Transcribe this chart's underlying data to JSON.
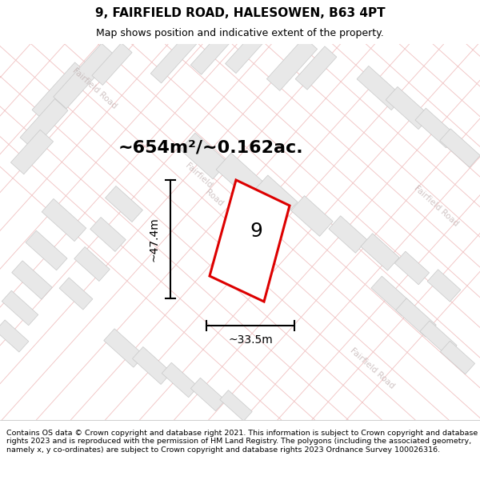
{
  "title": "9, FAIRFIELD ROAD, HALESOWEN, B63 4PT",
  "subtitle": "Map shows position and indicative extent of the property.",
  "footer": "Contains OS data © Crown copyright and database right 2021. This information is subject to Crown copyright and database rights 2023 and is reproduced with the permission of HM Land Registry. The polygons (including the associated geometry, namely x, y co-ordinates) are subject to Crown copyright and database rights 2023 Ordnance Survey 100026316.",
  "area_label": "~654m²/~0.162ac.",
  "width_label": "~33.5m",
  "height_label": "~47.4m",
  "property_number": "9",
  "map_bg": "#ffffff",
  "plot_outline_color": "#dd0000",
  "building_color": "#e8e8e8",
  "building_outline": "#c8c8c8",
  "road_line_color": "#f0c0c0",
  "road_label_color": "#c0b0b0",
  "title_fontsize": 11,
  "subtitle_fontsize": 9,
  "footer_fontsize": 6.8,
  "area_fontsize": 16,
  "number_fontsize": 18,
  "dim_fontsize": 10,
  "road_label_fontsize": 7.5
}
